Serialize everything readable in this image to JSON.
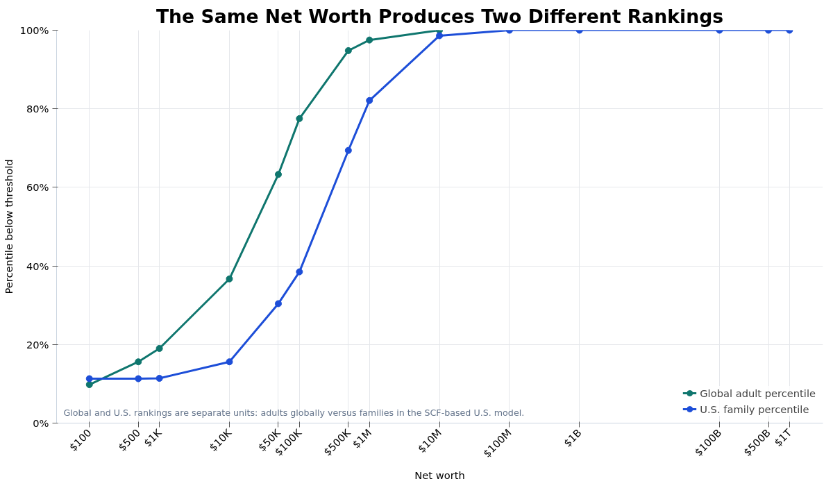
{
  "chart_data": {
    "type": "line",
    "title": "The Same Net Worth Produces Two Different Rankings",
    "xlabel": "Net worth",
    "ylabel": "Percentile below threshold",
    "annotations": [
      "Global and U.S. rankings are separate units: adults globally versus families in the SCF-based U.S. model."
    ],
    "x": [
      100,
      500,
      1000,
      10000,
      50000,
      100000,
      500000,
      1000000,
      10000000,
      100000000,
      1000000000,
      100000000000,
      500000000000,
      1000000000000
    ],
    "series": [
      {
        "name": "Global adult percentile",
        "color": "#0f766e",
        "values": [
          9.8,
          15.6,
          19.0,
          36.7,
          63.3,
          77.5,
          94.8,
          97.5,
          100,
          null,
          null,
          null,
          null,
          null
        ]
      },
      {
        "name": "U.S. family percentile",
        "color": "#1d4ed8",
        "values": [
          11.3,
          11.3,
          11.4,
          15.6,
          30.4,
          38.5,
          69.4,
          82.1,
          98.6,
          100,
          100,
          100,
          100,
          100
        ]
      }
    ],
    "log": "x",
    "xlim": [
      34,
      3000000000000
    ],
    "ylim": [
      0,
      100
    ],
    "xticks": [
      {
        "value": 100,
        "label": "$100"
      },
      {
        "value": 500,
        "label": "$500"
      },
      {
        "value": 1000,
        "label": "$1K"
      },
      {
        "value": 10000,
        "label": "$10K"
      },
      {
        "value": 50000,
        "label": "$50K"
      },
      {
        "value": 100000,
        "label": "$100K"
      },
      {
        "value": 500000,
        "label": "$500K"
      },
      {
        "value": 1000000,
        "label": "$1M"
      },
      {
        "value": 10000000,
        "label": "$10M"
      },
      {
        "value": 100000000,
        "label": "$100M"
      },
      {
        "value": 1000000000,
        "label": "$1B"
      },
      {
        "value": 100000000000,
        "label": "$100B"
      },
      {
        "value": 500000000000,
        "label": "$500B"
      },
      {
        "value": 1000000000000,
        "label": "$1T"
      }
    ],
    "yticks": [
      {
        "value": 0,
        "label": "0%"
      },
      {
        "value": 20,
        "label": "20%"
      },
      {
        "value": 40,
        "label": "40%"
      },
      {
        "value": 60,
        "label": "60%"
      },
      {
        "value": 80,
        "label": "80%"
      },
      {
        "value": 100,
        "label": "100%"
      }
    ],
    "grid": true,
    "legend": "bottom right",
    "marker": "circle",
    "line_style": "solid"
  }
}
